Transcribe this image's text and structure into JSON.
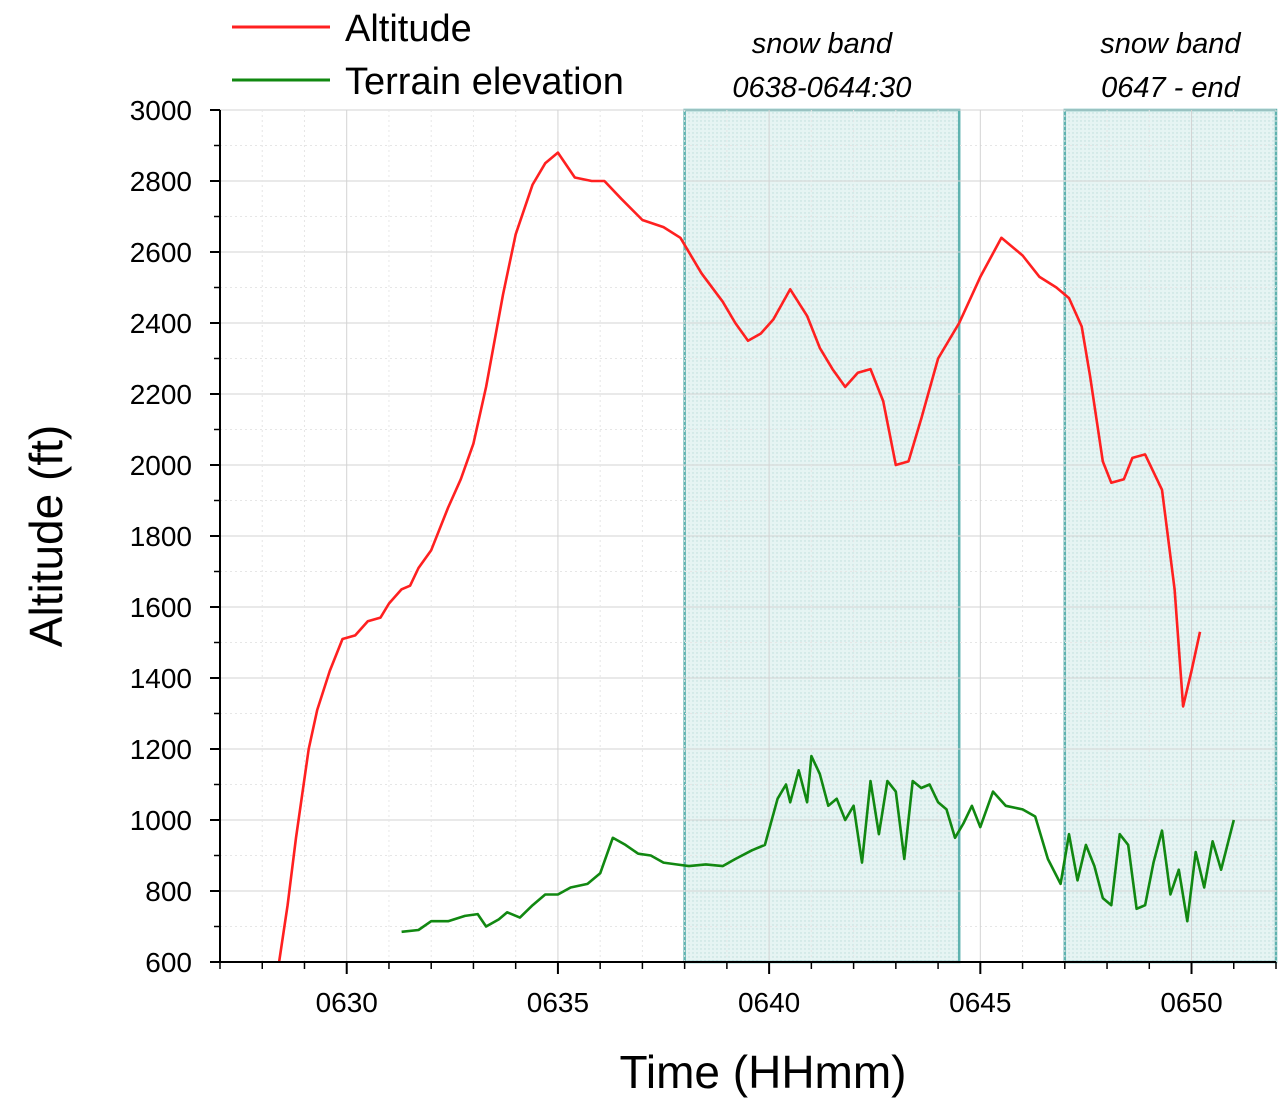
{
  "chart_data": {
    "type": "line",
    "xlabel": "Time (HHmm)",
    "ylabel": "Altitude (ft)",
    "xlim": [
      627,
      652
    ],
    "ylim": [
      600,
      3000
    ],
    "x_ticks": [
      {
        "value": 630,
        "label": "0630"
      },
      {
        "value": 635,
        "label": "0635"
      },
      {
        "value": 640,
        "label": "0640"
      },
      {
        "value": 645,
        "label": "0645"
      },
      {
        "value": 650,
        "label": "0650"
      }
    ],
    "y_ticks": [
      600,
      800,
      1000,
      1200,
      1400,
      1600,
      1800,
      2000,
      2200,
      2400,
      2600,
      2800,
      3000
    ],
    "grid": true,
    "legend": "top-left",
    "bands": [
      {
        "start": 638.0,
        "end": 644.5,
        "line1": "snow band",
        "line2": "0638-0644:30"
      },
      {
        "start": 647.0,
        "end": 652.0,
        "line1": "snow band",
        "line2": "0647 - end"
      }
    ],
    "series": [
      {
        "name": "Altitude",
        "color": "#ff2020",
        "points": [
          [
            628.4,
            600
          ],
          [
            628.6,
            760
          ],
          [
            628.8,
            950
          ],
          [
            629.1,
            1200
          ],
          [
            629.3,
            1310
          ],
          [
            629.6,
            1420
          ],
          [
            629.9,
            1510
          ],
          [
            630.2,
            1520
          ],
          [
            630.5,
            1560
          ],
          [
            630.8,
            1570
          ],
          [
            631.0,
            1610
          ],
          [
            631.3,
            1650
          ],
          [
            631.5,
            1660
          ],
          [
            631.7,
            1710
          ],
          [
            632.0,
            1760
          ],
          [
            632.4,
            1880
          ],
          [
            632.7,
            1960
          ],
          [
            633.0,
            2060
          ],
          [
            633.3,
            2220
          ],
          [
            633.7,
            2480
          ],
          [
            634.0,
            2650
          ],
          [
            634.4,
            2790
          ],
          [
            634.7,
            2850
          ],
          [
            635.0,
            2880
          ],
          [
            635.4,
            2810
          ],
          [
            635.8,
            2800
          ],
          [
            636.1,
            2800
          ],
          [
            636.5,
            2750
          ],
          [
            637.0,
            2690
          ],
          [
            637.5,
            2670
          ],
          [
            637.9,
            2640
          ],
          [
            638.4,
            2540
          ],
          [
            638.9,
            2460
          ],
          [
            639.2,
            2400
          ],
          [
            639.5,
            2350
          ],
          [
            639.8,
            2370
          ],
          [
            640.1,
            2410
          ],
          [
            640.5,
            2495
          ],
          [
            640.9,
            2420
          ],
          [
            641.2,
            2330
          ],
          [
            641.5,
            2270
          ],
          [
            641.8,
            2220
          ],
          [
            642.1,
            2260
          ],
          [
            642.4,
            2270
          ],
          [
            642.7,
            2180
          ],
          [
            643.0,
            2000
          ],
          [
            643.3,
            2010
          ],
          [
            643.6,
            2130
          ],
          [
            644.0,
            2300
          ],
          [
            644.5,
            2400
          ],
          [
            645.0,
            2530
          ],
          [
            645.5,
            2640
          ],
          [
            645.7,
            2620
          ],
          [
            646.0,
            2590
          ],
          [
            646.4,
            2530
          ],
          [
            646.8,
            2500
          ],
          [
            647.1,
            2470
          ],
          [
            647.4,
            2390
          ],
          [
            647.6,
            2250
          ],
          [
            647.9,
            2010
          ],
          [
            648.1,
            1950
          ],
          [
            648.4,
            1960
          ],
          [
            648.6,
            2020
          ],
          [
            648.9,
            2030
          ],
          [
            649.3,
            1930
          ],
          [
            649.6,
            1650
          ],
          [
            649.8,
            1320
          ],
          [
            650.0,
            1420
          ],
          [
            650.2,
            1530
          ]
        ]
      },
      {
        "name": "Terrain elevation",
        "color": "#118811",
        "points": [
          [
            631.3,
            685
          ],
          [
            631.7,
            690
          ],
          [
            632.0,
            715
          ],
          [
            632.4,
            715
          ],
          [
            632.8,
            730
          ],
          [
            633.1,
            735
          ],
          [
            633.3,
            700
          ],
          [
            633.6,
            720
          ],
          [
            633.8,
            740
          ],
          [
            634.1,
            725
          ],
          [
            634.4,
            760
          ],
          [
            634.7,
            790
          ],
          [
            635.0,
            790
          ],
          [
            635.3,
            810
          ],
          [
            635.7,
            820
          ],
          [
            636.0,
            850
          ],
          [
            636.3,
            950
          ],
          [
            636.6,
            930
          ],
          [
            636.9,
            905
          ],
          [
            637.2,
            900
          ],
          [
            637.5,
            880
          ],
          [
            637.8,
            875
          ],
          [
            638.1,
            870
          ],
          [
            638.5,
            875
          ],
          [
            638.9,
            870
          ],
          [
            639.2,
            890
          ],
          [
            639.6,
            915
          ],
          [
            639.9,
            930
          ],
          [
            640.2,
            1060
          ],
          [
            640.4,
            1100
          ],
          [
            640.5,
            1050
          ],
          [
            640.7,
            1140
          ],
          [
            640.9,
            1050
          ],
          [
            641.0,
            1180
          ],
          [
            641.2,
            1130
          ],
          [
            641.4,
            1040
          ],
          [
            641.6,
            1060
          ],
          [
            641.8,
            1000
          ],
          [
            642.0,
            1040
          ],
          [
            642.2,
            880
          ],
          [
            642.4,
            1110
          ],
          [
            642.6,
            960
          ],
          [
            642.8,
            1110
          ],
          [
            643.0,
            1080
          ],
          [
            643.2,
            890
          ],
          [
            643.4,
            1110
          ],
          [
            643.6,
            1090
          ],
          [
            643.8,
            1100
          ],
          [
            644.0,
            1050
          ],
          [
            644.2,
            1030
          ],
          [
            644.4,
            950
          ],
          [
            644.6,
            990
          ],
          [
            644.8,
            1040
          ],
          [
            645.0,
            980
          ],
          [
            645.3,
            1080
          ],
          [
            645.6,
            1040
          ],
          [
            646.0,
            1030
          ],
          [
            646.3,
            1010
          ],
          [
            646.6,
            890
          ],
          [
            646.9,
            820
          ],
          [
            647.1,
            960
          ],
          [
            647.3,
            830
          ],
          [
            647.5,
            930
          ],
          [
            647.7,
            870
          ],
          [
            647.9,
            780
          ],
          [
            648.1,
            760
          ],
          [
            648.3,
            960
          ],
          [
            648.5,
            930
          ],
          [
            648.7,
            750
          ],
          [
            648.9,
            760
          ],
          [
            649.1,
            880
          ],
          [
            649.3,
            970
          ],
          [
            649.5,
            790
          ],
          [
            649.7,
            860
          ],
          [
            649.9,
            715
          ],
          [
            650.1,
            910
          ],
          [
            650.3,
            810
          ],
          [
            650.5,
            940
          ],
          [
            650.7,
            860
          ],
          [
            651.0,
            1000
          ]
        ]
      }
    ]
  }
}
